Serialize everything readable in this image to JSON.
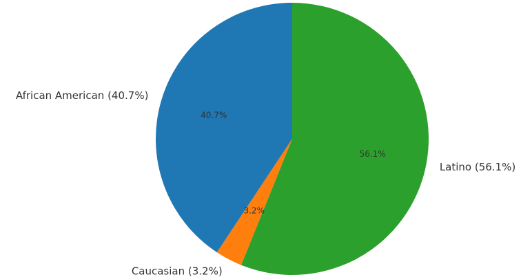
{
  "chart_data": {
    "type": "pie",
    "title": "",
    "start_angle_deg": 90,
    "direction": "clockwise",
    "legend": "none",
    "slices": [
      {
        "label": "Latino (56.1%)",
        "value": 56.1,
        "pct_label": "56.1%",
        "color": "#2ca02c"
      },
      {
        "label": "Caucasian (3.2%)",
        "value": 3.2,
        "pct_label": "3.2%",
        "color": "#ff7f0e"
      },
      {
        "label": "African American (40.7%)",
        "value": 40.7,
        "pct_label": "40.7%",
        "color": "#1f77b4"
      }
    ]
  }
}
